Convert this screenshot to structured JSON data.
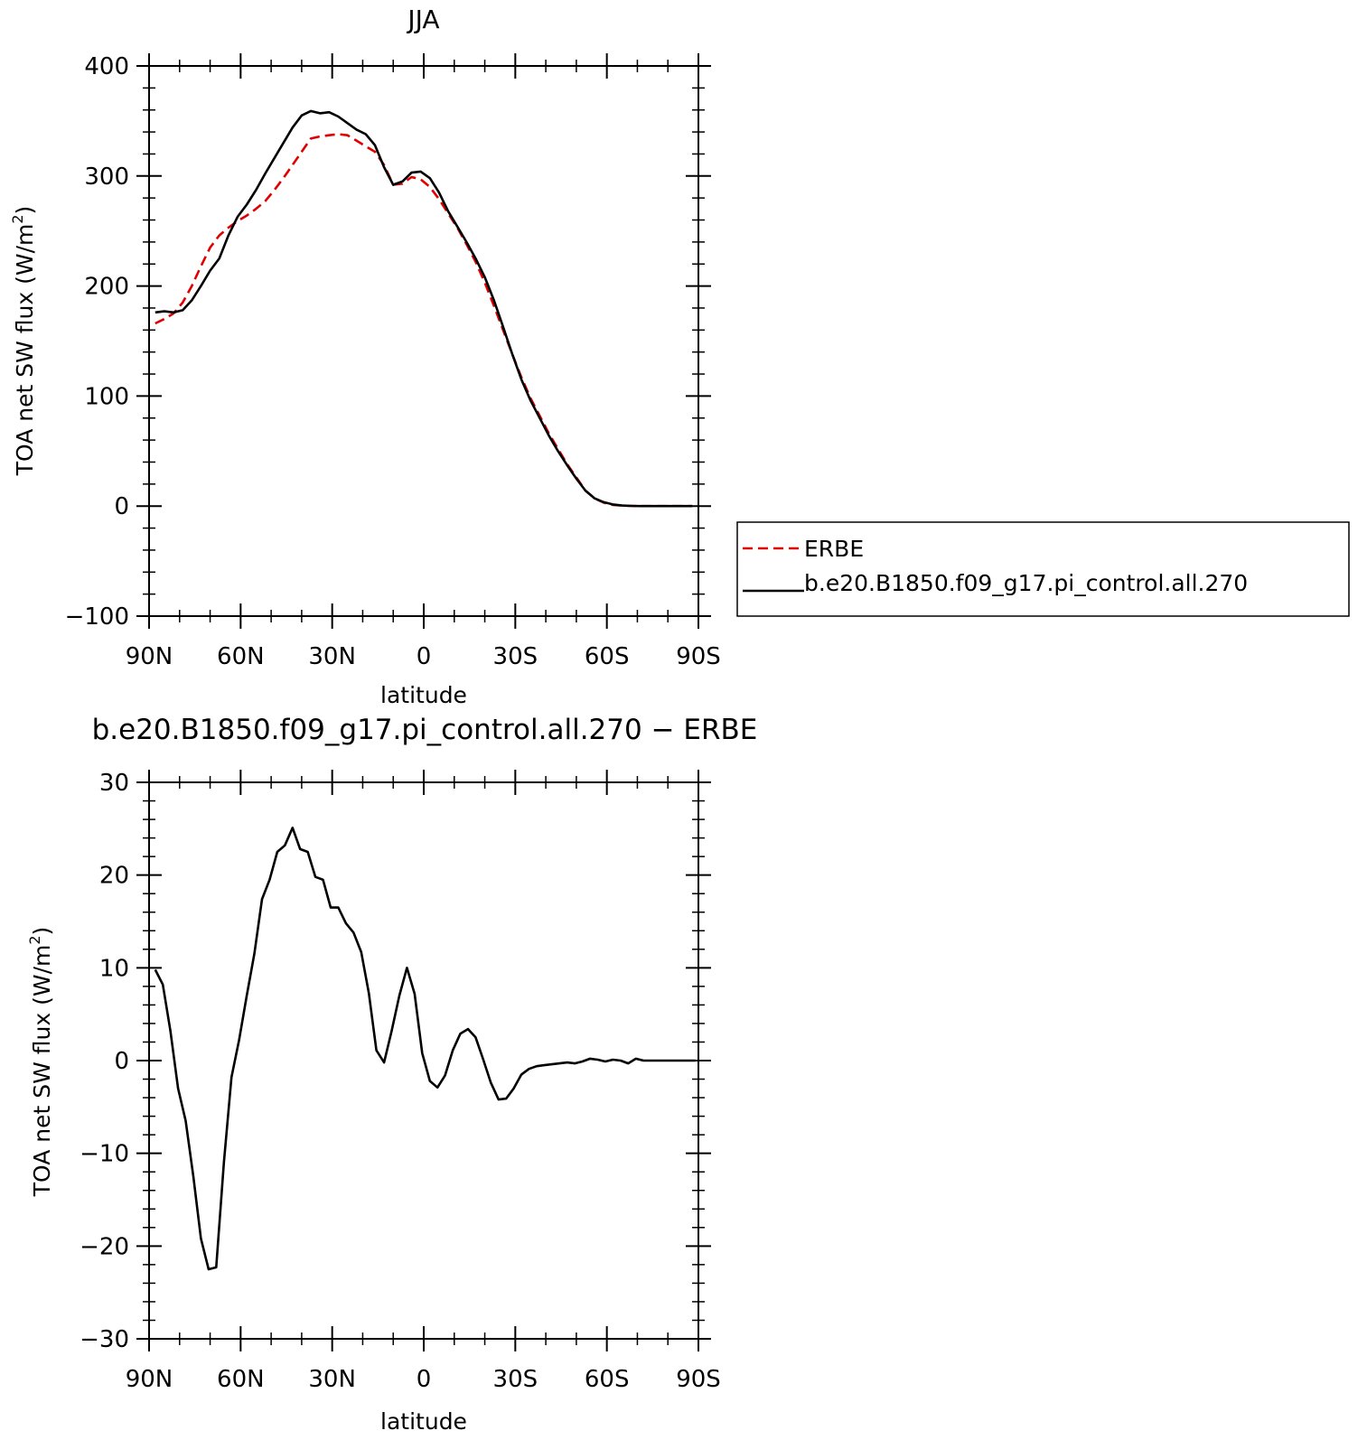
{
  "chart_data": [
    {
      "type": "line",
      "title": "JJA",
      "xlabel": "latitude",
      "ylabel": "TOA net SW flux (W/m²)",
      "ylabel_main": "TOA net SW flux (W/m",
      "ylabel_sup": "2",
      "ylabel_close": ")",
      "xlim": [
        90,
        -90
      ],
      "ylim": [
        -100,
        400
      ],
      "yticks": [
        -100,
        0,
        100,
        200,
        300,
        400
      ],
      "ytick_labels": [
        "−100",
        "0",
        "100",
        "200",
        "300",
        "400"
      ],
      "xticks": [
        90,
        60,
        30,
        0,
        -30,
        -60,
        -90
      ],
      "xtick_labels": [
        "90N",
        "60N",
        "30N",
        "0",
        "30S",
        "60S",
        "90S"
      ],
      "legend": "right-outside",
      "series": [
        {
          "name": "ERBE",
          "color": "#e00000",
          "dash": "dashed",
          "x": [
            88,
            85,
            82,
            79,
            76,
            73,
            70,
            67,
            64,
            61,
            58,
            55,
            52,
            49,
            46,
            43,
            40,
            37,
            34,
            31,
            28,
            25,
            22,
            19,
            16,
            13,
            10,
            7,
            4,
            1,
            -2,
            -5,
            -8,
            -11,
            -14,
            -17,
            -20,
            -23,
            -26,
            -29,
            -32,
            -35,
            -38,
            -41,
            -44,
            -47,
            -50,
            -53,
            -56,
            -59,
            -62,
            -65,
            -68,
            -71,
            -74,
            -77,
            -80,
            -83,
            -86,
            -88
          ],
          "y": [
            166,
            170,
            175,
            185,
            200,
            218,
            235,
            246,
            253,
            259,
            264,
            270,
            277,
            287,
            298,
            310,
            322,
            334,
            336,
            337,
            338,
            337,
            332,
            327,
            322,
            310,
            292,
            293,
            299,
            297,
            290,
            279,
            266,
            253,
            238,
            222,
            203,
            182,
            160,
            138,
            117,
            98,
            82,
            66,
            52,
            38,
            26,
            14,
            7,
            3,
            1,
            0.5,
            0.2,
            0,
            0,
            0,
            0,
            0,
            0,
            0
          ]
        },
        {
          "name": "b.e20.B1850.f09_g17.pi_control.all.270",
          "color": "#000000",
          "dash": "solid",
          "x": [
            88,
            85,
            82,
            79,
            76,
            73,
            70,
            67,
            64,
            61,
            58,
            55,
            52,
            49,
            46,
            43,
            40,
            37,
            34,
            31,
            28,
            25,
            22,
            19,
            16,
            13,
            10,
            7,
            4,
            1,
            -2,
            -5,
            -8,
            -11,
            -14,
            -17,
            -20,
            -23,
            -26,
            -29,
            -32,
            -35,
            -38,
            -41,
            -44,
            -47,
            -50,
            -53,
            -56,
            -59,
            -62,
            -65,
            -68,
            -71,
            -74,
            -77,
            -80,
            -83,
            -86,
            -88
          ],
          "y": [
            176,
            177,
            176,
            178,
            187,
            200,
            214,
            225,
            246,
            263,
            274,
            287,
            302,
            316,
            330,
            344,
            355,
            359,
            357,
            358,
            354,
            348,
            342,
            338,
            328,
            308,
            292,
            295,
            303,
            304,
            298,
            285,
            268,
            254,
            240,
            225,
            208,
            187,
            163,
            138,
            115,
            96,
            80,
            64,
            50,
            37,
            25,
            14,
            7,
            3.5,
            1.5,
            0.5,
            0.2,
            0,
            0,
            0,
            0,
            0,
            0,
            0
          ]
        }
      ]
    },
    {
      "type": "line",
      "title": "b.e20.B1850.f09_g17.pi_control.all.270 − ERBE",
      "xlabel": "latitude",
      "ylabel": "TOA net SW flux (W/m²)",
      "ylabel_main": "TOA net SW flux (W/m",
      "ylabel_sup": "2",
      "ylabel_close": ")",
      "xlim": [
        90,
        -90
      ],
      "ylim": [
        -30,
        30
      ],
      "yticks": [
        -30,
        -20,
        -10,
        0,
        10,
        20,
        30
      ],
      "ytick_labels": [
        "−30",
        "−20",
        "−10",
        "0",
        "10",
        "20",
        "30"
      ],
      "xticks": [
        90,
        60,
        30,
        0,
        -30,
        -60,
        -90
      ],
      "xtick_labels": [
        "90N",
        "60N",
        "30N",
        "0",
        "30S",
        "60S",
        "90S"
      ],
      "series": [
        {
          "color": "#000000",
          "dash": "solid",
          "x": [
            88,
            85.5,
            83,
            80.5,
            78,
            75.5,
            73,
            70.5,
            68,
            65.5,
            63,
            60.5,
            58,
            55.5,
            53,
            50.5,
            48,
            45.5,
            43,
            40.5,
            38,
            35.5,
            33,
            30.5,
            28,
            25.5,
            23,
            20.5,
            18,
            15.5,
            13,
            10.5,
            8,
            5.5,
            3,
            0.5,
            -2,
            -4.5,
            -7,
            -9.5,
            -12,
            -14.5,
            -17,
            -19.5,
            -22,
            -24.5,
            -27,
            -29.5,
            -32,
            -34.5,
            -37,
            -39.5,
            -42,
            -44.5,
            -47,
            -49.5,
            -52,
            -54.5,
            -57,
            -59.5,
            -62,
            -64.5,
            -67,
            -69.5,
            -72,
            -74.5,
            -77,
            -79.5,
            -82,
            -84.5,
            -87,
            -89
          ],
          "y": [
            9.8,
            8.2,
            3.2,
            -3.0,
            -6.5,
            -12.5,
            -19.2,
            -22.5,
            -22.3,
            -11.0,
            -1.8,
            2.2,
            7.0,
            11.5,
            17.4,
            19.5,
            22.5,
            23.2,
            25.1,
            22.8,
            22.5,
            19.8,
            19.5,
            16.5,
            16.5,
            14.8,
            13.8,
            11.7,
            7.3,
            1.1,
            -0.2,
            3.2,
            7.0,
            10.0,
            7.2,
            0.8,
            -2.2,
            -2.9,
            -1.6,
            1.1,
            2.9,
            3.4,
            2.5,
            0.1,
            -2.4,
            -4.2,
            -4.1,
            -3.0,
            -1.5,
            -0.9,
            -0.6,
            -0.5,
            -0.4,
            -0.3,
            -0.2,
            -0.3,
            -0.1,
            0.2,
            0.1,
            -0.1,
            0.1,
            0.0,
            -0.3,
            0.2,
            0.0,
            0.0,
            0.0,
            0.0,
            0.0,
            0.0,
            0.0,
            0.0
          ]
        }
      ]
    }
  ]
}
